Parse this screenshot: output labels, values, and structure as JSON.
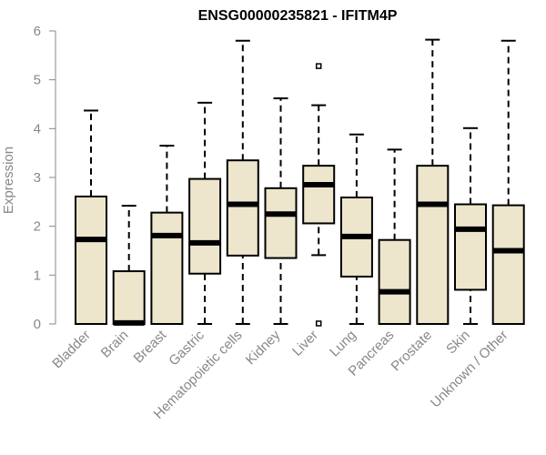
{
  "chart_data": {
    "type": "box",
    "title": "ENSG00000235821 - IFITM4P",
    "xlabel": "",
    "ylabel": "Expression",
    "ylim": [
      0,
      6
    ],
    "yticks": [
      0,
      1,
      2,
      3,
      4,
      5,
      6
    ],
    "categories": [
      "Bladder",
      "Brain",
      "Breast",
      "Gastric",
      "Hematopoietic cells",
      "Kidney",
      "Liver",
      "Lung",
      "Pancreas",
      "Prostate",
      "Skin",
      "Unknown / Other"
    ],
    "boxes": [
      {
        "min": 0,
        "q1": 0,
        "median": 1.73,
        "q3": 2.61,
        "max": 4.37,
        "outliers": []
      },
      {
        "min": 0,
        "q1": 0,
        "median": 0.02,
        "q3": 1.08,
        "max": 2.42,
        "outliers": []
      },
      {
        "min": 0,
        "q1": 0,
        "median": 1.81,
        "q3": 2.28,
        "max": 3.65,
        "outliers": []
      },
      {
        "min": 0,
        "q1": 1.03,
        "median": 1.66,
        "q3": 2.97,
        "max": 4.53,
        "outliers": []
      },
      {
        "min": 0,
        "q1": 1.4,
        "median": 2.45,
        "q3": 3.35,
        "max": 5.8,
        "outliers": []
      },
      {
        "min": 0,
        "q1": 1.35,
        "median": 2.25,
        "q3": 2.78,
        "max": 4.62,
        "outliers": []
      },
      {
        "min": 1.41,
        "q1": 2.06,
        "median": 2.85,
        "q3": 3.24,
        "max": 4.48,
        "outliers": [
          5.28,
          0.01
        ]
      },
      {
        "min": 0,
        "q1": 0.97,
        "median": 1.79,
        "q3": 2.59,
        "max": 3.88,
        "outliers": []
      },
      {
        "min": 0,
        "q1": 0,
        "median": 0.66,
        "q3": 1.72,
        "max": 3.57,
        "outliers": []
      },
      {
        "min": 0,
        "q1": 0,
        "median": 2.45,
        "q3": 3.24,
        "max": 5.82,
        "outliers": []
      },
      {
        "min": 0,
        "q1": 0.7,
        "median": 1.94,
        "q3": 2.45,
        "max": 4.01,
        "outliers": []
      },
      {
        "min": 0,
        "q1": 0,
        "median": 1.5,
        "q3": 2.43,
        "max": 5.8,
        "outliers": []
      }
    ],
    "grid": false,
    "colors": {
      "box_fill": "#ede5cc",
      "box_stroke": "#000000",
      "axis": "#888888",
      "text_muted": "#888888"
    }
  }
}
